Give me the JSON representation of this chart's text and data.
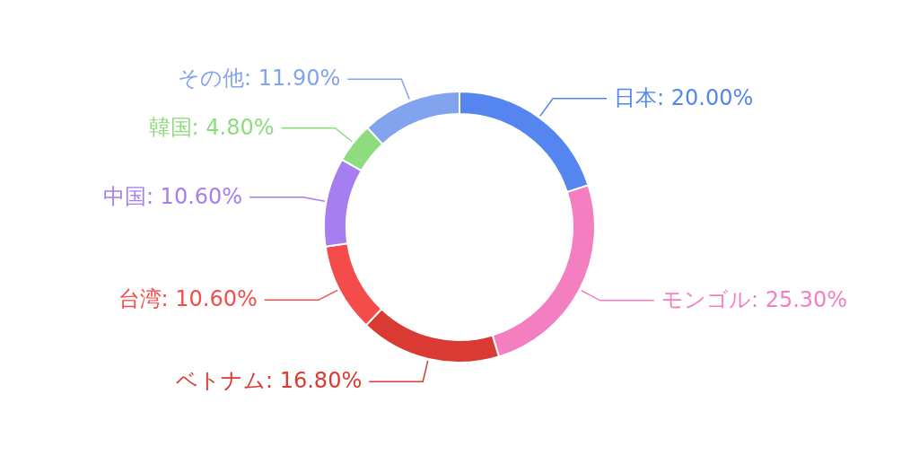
{
  "chart_data": {
    "type": "donut",
    "categories": [
      "日本",
      "モンゴル",
      "ベトナム",
      "台湾",
      "中国",
      "韓国",
      "その他"
    ],
    "values": [
      20.0,
      25.3,
      16.8,
      10.6,
      10.6,
      4.8,
      11.9
    ],
    "value_labels": [
      "20.00%",
      "25.30%",
      "16.80%",
      "10.60%",
      "10.60%",
      "4.80%",
      "11.90%"
    ],
    "colors": [
      "#5586f0",
      "#f47fc0",
      "#d93a32",
      "#f44c4a",
      "#a57ef0",
      "#8ddc7e",
      "#82a3ee"
    ]
  }
}
